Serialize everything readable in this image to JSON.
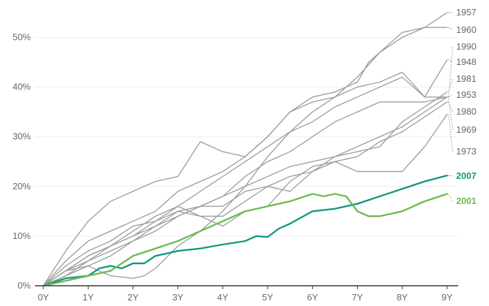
{
  "chart_data": {
    "type": "line",
    "title": "",
    "xlabel": "",
    "ylabel": "",
    "x_ticks": [
      "0Y",
      "1Y",
      "2Y",
      "3Y",
      "4Y",
      "5Y",
      "6Y",
      "7Y",
      "8Y",
      "9Y"
    ],
    "y_ticks": [
      "0%",
      "10%",
      "20%",
      "30%",
      "40%",
      "50%"
    ],
    "xlim": [
      0,
      9
    ],
    "ylim": [
      0,
      55
    ],
    "grid": "horizontal",
    "legend": "labels at line ends, right",
    "colors": {
      "grey": "#9e9e9e",
      "teal": "#12977f",
      "green": "#6cbb4f",
      "axis": "#333333",
      "grid": "#eeeeee"
    },
    "series": [
      {
        "name": "1957",
        "color": "#9e9e9e",
        "x": [
          0,
          0.5,
          1,
          1.5,
          2,
          2.25,
          2.5,
          3,
          3.5,
          4,
          4.5,
          5,
          5.5,
          6,
          6.5,
          7,
          7.5,
          8,
          8.5,
          9
        ],
        "y": [
          0,
          3,
          4,
          2,
          1.5,
          2,
          3.5,
          8,
          11,
          15,
          20,
          26,
          31,
          35,
          38,
          42,
          47,
          50,
          52,
          55
        ]
      },
      {
        "name": "1960",
        "color": "#9e9e9e",
        "x": [
          0,
          0.5,
          1,
          1.5,
          2,
          2.5,
          3,
          3.5,
          4,
          4.5,
          5,
          5.5,
          6,
          6.5,
          7,
          7.25,
          7.5,
          8,
          8.5,
          9
        ],
        "y": [
          0,
          5,
          9,
          11,
          13,
          15,
          19,
          21,
          23,
          26,
          30,
          35,
          38,
          39,
          41,
          45,
          47,
          51,
          52,
          52
        ]
      },
      {
        "name": "1990",
        "color": "#9e9e9e",
        "x": [
          0,
          0.5,
          1,
          1.5,
          2,
          2.5,
          3,
          3.5,
          4,
          4.5,
          5,
          5.5,
          6,
          6.5,
          7,
          7.5,
          8,
          8.5,
          9
        ],
        "y": [
          0,
          3,
          5,
          8,
          11,
          14,
          16,
          19,
          22,
          25,
          28,
          31,
          33,
          36,
          38,
          40,
          42,
          38,
          38
        ]
      },
      {
        "name": "1948",
        "color": "#9e9e9e",
        "x": [
          0,
          0.5,
          1,
          1.5,
          2,
          2.5,
          3,
          3.5,
          4,
          4.5,
          5,
          5.5,
          6,
          6.5,
          7,
          7.5,
          8,
          8.5,
          9
        ],
        "y": [
          0,
          7,
          13,
          17,
          19,
          21,
          22,
          29,
          27,
          26,
          30,
          35,
          37,
          38,
          40,
          41,
          43,
          38,
          45.5
        ]
      },
      {
        "name": "1981",
        "color": "#9e9e9e",
        "x": [
          0,
          0.5,
          1,
          1.5,
          2,
          2.5,
          3,
          3.5,
          4,
          4.5,
          5,
          5.5,
          6,
          6.5,
          7,
          7.5,
          8,
          8.5,
          9
        ],
        "y": [
          0,
          3,
          6,
          8,
          10,
          12,
          14,
          16,
          18,
          20,
          22,
          24,
          25,
          26,
          27,
          28,
          33,
          36,
          39
        ]
      },
      {
        "name": "1953",
        "color": "#9e9e9e",
        "x": [
          0,
          0.5,
          1,
          1.5,
          2,
          2.5,
          3,
          3.5,
          4,
          4.5,
          5,
          5.5,
          6,
          6.5,
          7,
          7.5,
          8,
          8.5,
          9
        ],
        "y": [
          0,
          2,
          5,
          7,
          9,
          12,
          15,
          16,
          18,
          22,
          25,
          27,
          30,
          33,
          35,
          37,
          37,
          37,
          38
        ]
      },
      {
        "name": "1980",
        "color": "#9e9e9e",
        "x": [
          0,
          0.5,
          1,
          1.5,
          2,
          2.5,
          3,
          3.5,
          4,
          4.5,
          5,
          5.5,
          6,
          6.5,
          7,
          7.5,
          8,
          8.5,
          9
        ],
        "y": [
          0,
          4,
          7,
          9,
          12,
          13,
          16,
          14,
          12,
          15,
          16,
          21,
          24,
          25,
          26,
          29,
          31,
          34,
          37
        ]
      },
      {
        "name": "1969",
        "color": "#9e9e9e",
        "x": [
          0,
          0.5,
          1,
          1.5,
          2,
          2.5,
          3,
          3.5,
          4,
          4.5,
          5,
          5.5,
          6,
          6.5,
          7,
          7.5,
          8,
          8.5,
          9
        ],
        "y": [
          0,
          2,
          4,
          6,
          9,
          11,
          14,
          16,
          16,
          19,
          20,
          19,
          23,
          26,
          28,
          30,
          32,
          35,
          38
        ]
      },
      {
        "name": "1973",
        "color": "#9e9e9e",
        "x": [
          0,
          0.5,
          1,
          1.5,
          2,
          2.5,
          3,
          3.5,
          4,
          4.5,
          5,
          5.5,
          6,
          6.5,
          7,
          7.5,
          8,
          8.5,
          9
        ],
        "y": [
          0,
          3,
          6,
          8,
          10,
          13,
          15,
          14,
          14,
          17,
          20,
          22,
          23,
          25,
          23,
          23,
          23,
          28,
          34.5
        ]
      },
      {
        "name": "2007",
        "color": "#12977f",
        "x": [
          0,
          0.5,
          1,
          1.25,
          1.5,
          1.75,
          2,
          2.25,
          2.5,
          2.75,
          3,
          3.5,
          4,
          4.5,
          4.75,
          5,
          5.25,
          5.5,
          6,
          6.5,
          7,
          7.5,
          8,
          8.5,
          9
        ],
        "y": [
          0,
          1.5,
          2,
          3.5,
          4,
          3.5,
          4.5,
          4.5,
          6,
          6.5,
          7,
          7.5,
          8.3,
          9,
          10,
          9.8,
          11.5,
          12.5,
          15,
          15.5,
          16.5,
          18,
          19.5,
          21,
          22.2
        ]
      },
      {
        "name": "2001",
        "color": "#6cbb4f",
        "x": [
          0,
          0.5,
          1,
          1.5,
          2,
          2.5,
          3,
          3.5,
          4,
          4.5,
          5,
          5.5,
          6,
          6.25,
          6.5,
          6.75,
          7,
          7.25,
          7.5,
          8,
          8.5,
          9
        ],
        "y": [
          0,
          1,
          2,
          3,
          6,
          7.5,
          9,
          11,
          13,
          15,
          16,
          17,
          18.5,
          18,
          18.5,
          18,
          15,
          14,
          14,
          15,
          17,
          18.5
        ]
      }
    ]
  }
}
